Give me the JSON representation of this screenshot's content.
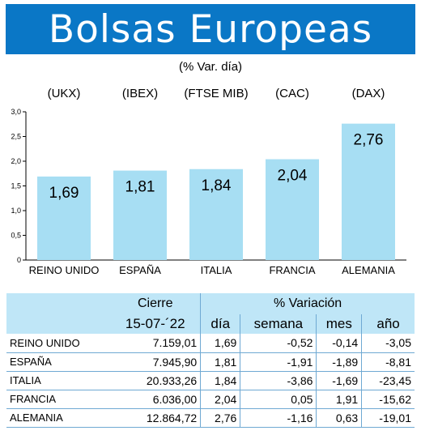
{
  "title": "Bolsas Europeas",
  "subtitle": "(% Var. día)",
  "colors": {
    "banner": "#0a77c6",
    "bar": "#a7def3",
    "header": "#bfe6f7",
    "rule": "#6fa9d3"
  },
  "chart_data": {
    "type": "bar",
    "categories": [
      "REINO UNIDO",
      "ESPAÑA",
      "ITALIA",
      "FRANCIA",
      "ALEMANIA"
    ],
    "index_labels": [
      "(UKX)",
      "(IBEX)",
      "(FTSE MIB)",
      "(CAC)",
      "(DAX)"
    ],
    "values": [
      1.69,
      1.81,
      1.84,
      2.04,
      2.76
    ],
    "value_labels": [
      "1,69",
      "1,81",
      "1,84",
      "2,04",
      "2,76"
    ],
    "ylim": [
      0,
      3.0
    ],
    "yticks": [
      0,
      0.5,
      1.0,
      1.5,
      2.0,
      2.5,
      3.0
    ],
    "ytick_labels": [
      "0",
      "0,5",
      "1,0",
      "1,5",
      "2,0",
      "2,5",
      "3,0"
    ],
    "grid": false
  },
  "table": {
    "header_cierre": "Cierre",
    "header_variacion": "% Variación",
    "date": "15-07-´22",
    "col_dia": "día",
    "col_semana": "semana",
    "col_mes": "mes",
    "col_anio": "año",
    "rows": [
      {
        "market": "REINO UNIDO",
        "cierre": "7.159,01",
        "dia": "1,69",
        "semana": "-0,52",
        "mes": "-0,14",
        "anio": "-3,05"
      },
      {
        "market": "ESPAÑA",
        "cierre": "7.945,90",
        "dia": "1,81",
        "semana": "-1,91",
        "mes": "-1,89",
        "anio": "-8,81"
      },
      {
        "market": "ITALIA",
        "cierre": "20.933,26",
        "dia": "1,84",
        "semana": "-3,86",
        "mes": "-1,69",
        "anio": "-23,45"
      },
      {
        "market": "FRANCIA",
        "cierre": "6.036,00",
        "dia": "2,04",
        "semana": "0,05",
        "mes": "1,91",
        "anio": "-15,62"
      },
      {
        "market": "ALEMANIA",
        "cierre": "12.864,72",
        "dia": "2,76",
        "semana": "-1,16",
        "mes": "0,63",
        "anio": "-19,01"
      }
    ]
  }
}
